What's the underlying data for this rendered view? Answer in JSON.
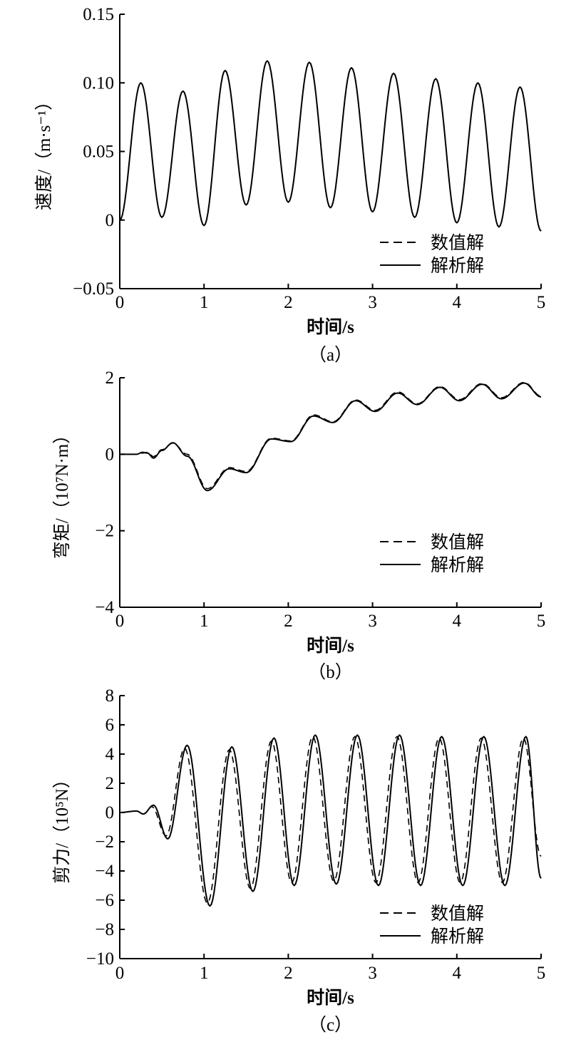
{
  "chart_data": [
    {
      "type": "line",
      "caption": "（a）",
      "xlabel": "时间/s",
      "ylabel": "速度/（m·s⁻¹）",
      "xlim": [
        0,
        5
      ],
      "ylim": [
        -0.05,
        0.15
      ],
      "xticks": [
        0,
        1,
        2,
        3,
        4,
        5
      ],
      "xtick_labels": [
        "0",
        "1",
        "2",
        "3",
        "4",
        "5"
      ],
      "yticks": [
        -0.05,
        0,
        0.05,
        0.1,
        0.15
      ],
      "ytick_labels": [
        "−0.05",
        "0",
        "0.05",
        "0.10",
        "0.15"
      ],
      "legend_position": "bottom-right",
      "series": [
        {
          "name": "数值解",
          "style": "dashed",
          "color": "#000000",
          "x": [
            0,
            0.25,
            0.5,
            0.75,
            1.0,
            1.25,
            1.5,
            1.75,
            2.0,
            2.25,
            2.5,
            2.75,
            3.0,
            3.25,
            3.5,
            3.75,
            4.0,
            4.25,
            4.5,
            4.75,
            5.0
          ],
          "y": [
            0,
            0.1,
            0.002,
            0.094,
            -0.004,
            0.109,
            0.011,
            0.116,
            0.013,
            0.115,
            0.009,
            0.111,
            0.006,
            0.107,
            0.002,
            0.103,
            -0.002,
            0.1,
            -0.005,
            0.097,
            -0.008
          ]
        },
        {
          "name": "解析解",
          "style": "solid",
          "color": "#000000",
          "x": [
            0,
            0.25,
            0.5,
            0.75,
            1.0,
            1.25,
            1.5,
            1.75,
            2.0,
            2.25,
            2.5,
            2.75,
            3.0,
            3.25,
            3.5,
            3.75,
            4.0,
            4.25,
            4.5,
            4.75,
            5.0
          ],
          "y": [
            0,
            0.1,
            0.002,
            0.094,
            -0.004,
            0.109,
            0.011,
            0.116,
            0.013,
            0.115,
            0.009,
            0.111,
            0.006,
            0.107,
            0.002,
            0.103,
            -0.002,
            0.1,
            -0.005,
            0.097,
            -0.008
          ]
        }
      ]
    },
    {
      "type": "line",
      "caption": "（b）",
      "xlabel": "时间/s",
      "ylabel": "弯矩/（10⁷N·m）",
      "xlim": [
        0,
        5
      ],
      "ylim": [
        -4,
        2
      ],
      "xticks": [
        0,
        1,
        2,
        3,
        4,
        5
      ],
      "xtick_labels": [
        "0",
        "1",
        "2",
        "3",
        "4",
        "5"
      ],
      "yticks": [
        -4,
        -2,
        0,
        2
      ],
      "ytick_labels": [
        "−4",
        "−2",
        "0",
        "2"
      ],
      "legend_position": "bottom-right",
      "series": [
        {
          "name": "数值解",
          "style": "dashed",
          "color": "#000000",
          "x": [
            0,
            0.2,
            0.27,
            0.33,
            0.4,
            0.5,
            0.63,
            0.8,
            1.04,
            1.3,
            1.5,
            1.8,
            2.03,
            2.3,
            2.53,
            2.8,
            3.03,
            3.3,
            3.53,
            3.8,
            4.03,
            4.3,
            4.53,
            4.8,
            5.0
          ],
          "y": [
            0,
            0,
            0.03,
            0.05,
            -0.06,
            0.12,
            0.29,
            0.0,
            -0.9,
            -0.35,
            -0.45,
            0.42,
            0.35,
            1.03,
            0.85,
            1.42,
            1.15,
            1.63,
            1.32,
            1.77,
            1.43,
            1.85,
            1.48,
            1.88,
            1.52
          ]
        },
        {
          "name": "解析解",
          "style": "solid",
          "color": "#000000",
          "x": [
            0,
            0.2,
            0.27,
            0.33,
            0.4,
            0.5,
            0.63,
            0.8,
            1.04,
            1.3,
            1.5,
            1.8,
            2.03,
            2.3,
            2.53,
            2.8,
            3.03,
            3.3,
            3.53,
            3.8,
            4.03,
            4.3,
            4.53,
            4.8,
            5.0
          ],
          "y": [
            0,
            0,
            0.05,
            0.03,
            -0.1,
            0.1,
            0.3,
            -0.05,
            -0.95,
            -0.38,
            -0.48,
            0.4,
            0.33,
            1.0,
            0.83,
            1.4,
            1.12,
            1.6,
            1.3,
            1.75,
            1.4,
            1.83,
            1.45,
            1.86,
            1.5
          ]
        }
      ]
    },
    {
      "type": "line",
      "caption": "（c）",
      "xlabel": "时间/s",
      "ylabel": "剪力/（10⁵N）",
      "xlim": [
        0,
        5
      ],
      "ylim": [
        -10,
        8
      ],
      "xticks": [
        0,
        1,
        2,
        3,
        4,
        5
      ],
      "xtick_labels": [
        "0",
        "1",
        "2",
        "3",
        "4",
        "5"
      ],
      "yticks": [
        -10,
        -8,
        -6,
        -4,
        -2,
        0,
        2,
        4,
        6,
        8
      ],
      "ytick_labels": [
        "−10",
        "−8",
        "−6",
        "−4",
        "−2",
        "0",
        "2",
        "4",
        "6",
        "8"
      ],
      "legend_position": "bottom-right",
      "series": [
        {
          "name": "数值解",
          "style": "dashed",
          "color": "#000000",
          "x": [
            0,
            0.2,
            0.28,
            0.38,
            0.55,
            0.77,
            1.04,
            1.3,
            1.55,
            1.8,
            2.04,
            2.29,
            2.54,
            2.79,
            3.04,
            3.29,
            3.54,
            3.79,
            4.04,
            4.29,
            4.54,
            4.79,
            5.0
          ],
          "y": [
            0,
            0.1,
            -0.1,
            0.4,
            -1.6,
            4.4,
            -6.2,
            4.3,
            -5.2,
            4.9,
            -4.8,
            5.2,
            -4.7,
            5.2,
            -4.8,
            5.2,
            -4.8,
            5.1,
            -4.8,
            5.1,
            -4.8,
            5.1,
            -3.0
          ]
        },
        {
          "name": "解析解",
          "style": "solid",
          "color": "#000000",
          "x": [
            0,
            0.2,
            0.28,
            0.4,
            0.57,
            0.8,
            1.07,
            1.33,
            1.58,
            1.83,
            2.07,
            2.32,
            2.57,
            2.82,
            3.07,
            3.32,
            3.57,
            3.82,
            4.07,
            4.32,
            4.57,
            4.82,
            5.0
          ],
          "y": [
            0,
            0.1,
            -0.1,
            0.5,
            -1.8,
            4.6,
            -6.4,
            4.5,
            -5.4,
            5.1,
            -5.0,
            5.3,
            -4.9,
            5.3,
            -5.0,
            5.3,
            -5.0,
            5.2,
            -5.0,
            5.2,
            -5.0,
            5.2,
            -4.5
          ]
        }
      ]
    }
  ]
}
